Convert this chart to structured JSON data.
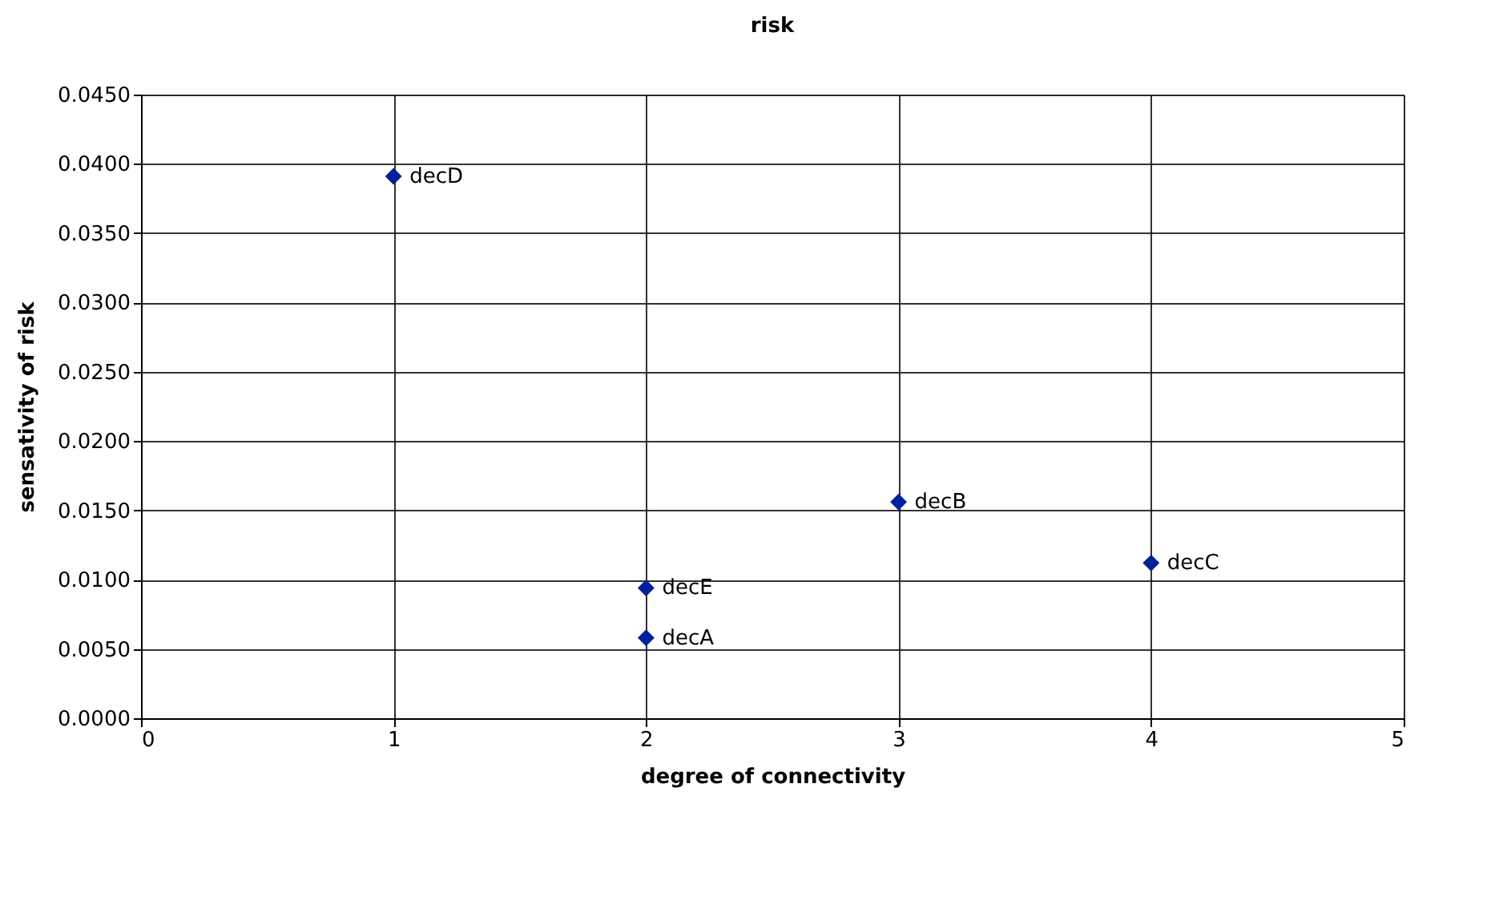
{
  "chart_data": {
    "type": "scatter",
    "title": "risk",
    "xlabel": "degree of connectivity",
    "ylabel": "sensativity of risk",
    "series": [
      {
        "color": "#002199",
        "x": [
          2,
          3,
          4,
          1,
          2
        ],
        "values": [
          0.0058,
          0.0156,
          0.0112,
          0.0391,
          0.0094
        ]
      }
    ],
    "annotations": [
      {
        "text": "decA",
        "x": 2,
        "y": 0.0058
      },
      {
        "text": "decB",
        "x": 3,
        "y": 0.0156
      },
      {
        "text": "decC",
        "x": 4,
        "y": 0.0112
      },
      {
        "text": "decD",
        "x": 1,
        "y": 0.0391
      },
      {
        "text": "decE",
        "x": 2,
        "y": 0.0094
      }
    ],
    "xlim": [
      0,
      5
    ],
    "xticks": [
      0,
      1,
      2,
      3,
      4,
      5
    ],
    "ylim": [
      0,
      0.045
    ],
    "yticks": [
      {
        "value": 0,
        "label": "0.0000"
      },
      {
        "value": 0.005,
        "label": "0.0050"
      },
      {
        "value": 0.01,
        "label": "0.0100"
      },
      {
        "value": 0.015,
        "label": "0.0150"
      },
      {
        "value": 0.02,
        "label": "0.0200"
      },
      {
        "value": 0.025,
        "label": "0.0250"
      },
      {
        "value": 0.03,
        "label": "0.0300"
      },
      {
        "value": 0.035,
        "label": "0.0350"
      },
      {
        "value": 0.04,
        "label": "0.0400"
      },
      {
        "value": 0.045,
        "label": "0.0450"
      }
    ],
    "grid": true,
    "marker": "diamond"
  }
}
